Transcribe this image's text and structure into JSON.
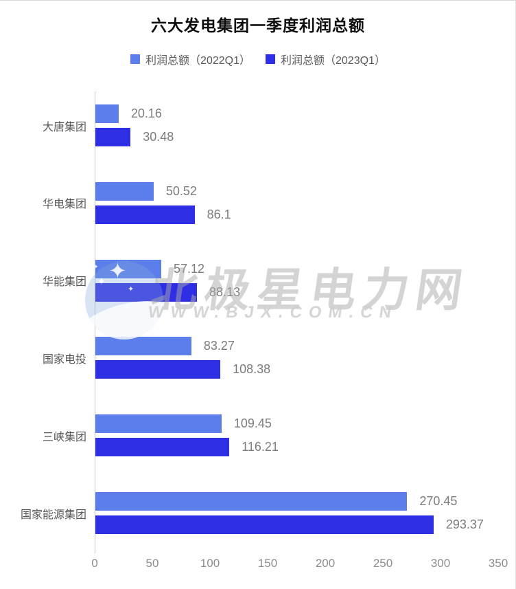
{
  "title": "六大发电集团一季度利润总额",
  "legend": [
    {
      "label": "利润总额（2022Q1）",
      "color": "#5b7eea"
    },
    {
      "label": "利润总额（2023Q1）",
      "color": "#2e2ee4"
    }
  ],
  "chart_data": {
    "type": "bar",
    "orientation": "horizontal",
    "title": "六大发电集团一季度利润总额",
    "categories": [
      "大唐集团",
      "华电集团",
      "华能集团",
      "国家电投",
      "三峡集团",
      "国家能源集团"
    ],
    "series": [
      {
        "name": "利润总额（2022Q1）",
        "color": "#5b7eea",
        "values": [
          20.16,
          50.52,
          57.12,
          83.27,
          109.45,
          270.45
        ],
        "labels": [
          "20.16",
          "50.52",
          "57.12",
          "83.27",
          "109.45",
          "270.45"
        ]
      },
      {
        "name": "利润总额（2023Q1）",
        "color": "#2e2ee4",
        "values": [
          30.48,
          86.1,
          88.13,
          108.38,
          116.21,
          293.37
        ],
        "labels": [
          "30.48",
          "86.1",
          "88.13",
          "108.38",
          "116.21",
          "293.37"
        ]
      }
    ],
    "xlim": [
      0,
      350
    ],
    "x_ticks": [
      "0",
      "50",
      "100",
      "150",
      "200",
      "250",
      "300",
      "350"
    ],
    "grid": false,
    "legend_position": "top",
    "value_labels": "outside-end"
  },
  "watermark": {
    "site_name": "北极星电力网",
    "site_url": "WWW.BJX.COM.CN",
    "logo": "crescent-moon-stars-icon"
  },
  "colors": {
    "series_2022": "#5b7eea",
    "series_2023": "#2e2ee4",
    "title_text": "#0d0d0d",
    "label_text": "#595959",
    "value_text": "#7c7c7c",
    "tick_text": "#8c8c8c",
    "axis_line": "#c9c9c9",
    "background": "#ffffff"
  }
}
